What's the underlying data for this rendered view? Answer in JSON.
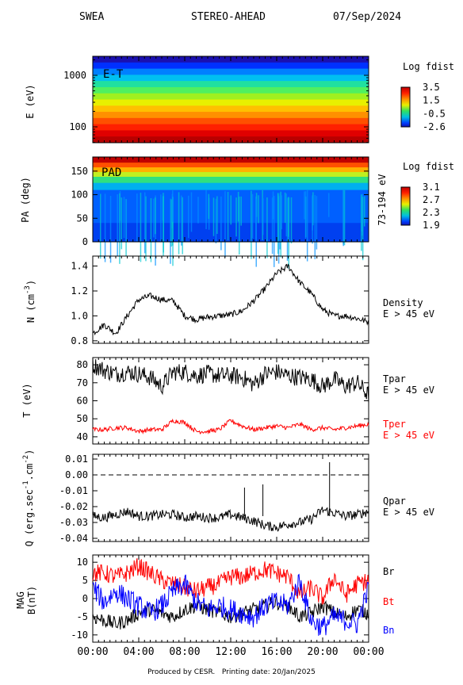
{
  "header": {
    "instrument": "SWEA",
    "spacecraft": "STEREO-AHEAD",
    "date": "07/Sep/2024"
  },
  "footer": {
    "produced_by": "Produced by CESR.",
    "printing_date": "Printing date: 20/Jan/2025"
  },
  "chart_data": [
    {
      "type": "heatmap",
      "panel": "E-T",
      "label": "E-T",
      "ylabel": "E (eV)",
      "yscale": "log",
      "yticks": [
        "100",
        "1000"
      ],
      "colorbar": {
        "title": "Log fdist",
        "ticks": [
          "3.5",
          "1.5",
          "-0.5",
          "-2.6"
        ],
        "min": -2.6,
        "max": 3.5
      }
    },
    {
      "type": "heatmap",
      "panel": "PAD",
      "label": "PAD",
      "ylabel": "PA (deg)",
      "right_label": "73-194 eV",
      "yticks": [
        "0",
        "50",
        "100",
        "150"
      ],
      "ylim": [
        0,
        180
      ],
      "colorbar": {
        "title": "Log fdist",
        "ticks": [
          "3.1",
          "2.7",
          "2.3",
          "1.9"
        ],
        "min": 1.9,
        "max": 3.1
      }
    },
    {
      "type": "line",
      "panel": "density",
      "ylabel": "N (cm",
      "ylabel_sup": "-3",
      "ylabel_end": ")",
      "ylim": [
        0.78,
        1.48
      ],
      "yticks": [
        "0.8",
        "1.0",
        "1.2",
        "1.4"
      ],
      "legend": [
        {
          "text": "Density",
          "color": "#000000"
        },
        {
          "text": "E > 45 eV",
          "color": "#000000"
        }
      ],
      "series": [
        {
          "name": "Density",
          "color": "#000000",
          "x": [
            0,
            1,
            2,
            3,
            4,
            5,
            6,
            7,
            8,
            9,
            10,
            11,
            12,
            13,
            14,
            15,
            16,
            17,
            18,
            19,
            20,
            21,
            22,
            23,
            24
          ],
          "y": [
            0.86,
            0.93,
            0.86,
            1.0,
            1.13,
            1.16,
            1.13,
            1.12,
            1.0,
            0.97,
            0.99,
            1.0,
            1.01,
            1.04,
            1.12,
            1.22,
            1.34,
            1.4,
            1.27,
            1.18,
            1.05,
            1.0,
            1.0,
            0.98,
            0.95
          ]
        }
      ]
    },
    {
      "type": "line",
      "panel": "temperature",
      "ylabel": "T (eV)",
      "ylim": [
        36,
        84
      ],
      "yticks": [
        "40",
        "50",
        "60",
        "70",
        "80"
      ],
      "legend": [
        {
          "text": "Tpar",
          "color": "#000000"
        },
        {
          "text": "E > 45 eV",
          "color": "#000000"
        },
        {
          "text": "Tper",
          "color": "#ff0000"
        },
        {
          "text": "E > 45 eV",
          "color": "#ff0000"
        }
      ],
      "series": [
        {
          "name": "Tpar",
          "color": "#000000",
          "x": [
            0,
            1,
            2,
            3,
            4,
            5,
            6,
            7,
            8,
            9,
            10,
            11,
            12,
            13,
            14,
            15,
            16,
            17,
            18,
            19,
            20,
            21,
            22,
            23,
            24
          ],
          "y": [
            80,
            77,
            75,
            76,
            75,
            73,
            68,
            76,
            76,
            74,
            75,
            74,
            74,
            73,
            69,
            75,
            76,
            74,
            73,
            72,
            68,
            72,
            68,
            70,
            63
          ]
        },
        {
          "name": "Tper",
          "color": "#ff0000",
          "x": [
            0,
            1,
            2,
            3,
            4,
            5,
            6,
            7,
            8,
            9,
            10,
            11,
            12,
            13,
            14,
            15,
            16,
            17,
            18,
            19,
            20,
            21,
            22,
            23,
            24
          ],
          "y": [
            44,
            44,
            45,
            45,
            43,
            44,
            44,
            49,
            48,
            43,
            43,
            44,
            49,
            46,
            44,
            45,
            46,
            45,
            47,
            44,
            45,
            44,
            45,
            46,
            47
          ]
        }
      ]
    },
    {
      "type": "line",
      "panel": "heatflux",
      "ylabel": "Q (erg.sec",
      "ylabel_sup1": "-1",
      "ylabel_mid": ".cm",
      "ylabel_sup2": "-2",
      "ylabel_end": ")",
      "ylim": [
        -0.042,
        0.013
      ],
      "yticks": [
        "0.01",
        "0.00",
        "-0.01",
        "-0.02",
        "-0.03",
        "-0.04"
      ],
      "legend": [
        {
          "text": "Qpar",
          "color": "#000000"
        },
        {
          "text": "E > 45 eV",
          "color": "#000000"
        }
      ],
      "series": [
        {
          "name": "Qpar",
          "color": "#000000",
          "x": [
            0,
            1,
            2,
            3,
            4,
            5,
            6,
            7,
            8,
            9,
            10,
            11,
            12,
            13,
            14,
            15,
            16,
            17,
            18,
            19,
            20,
            21,
            22,
            23,
            24
          ],
          "y": [
            -0.026,
            -0.027,
            -0.025,
            -0.023,
            -0.026,
            -0.026,
            -0.025,
            -0.025,
            -0.027,
            -0.026,
            -0.027,
            -0.027,
            -0.025,
            -0.027,
            -0.029,
            -0.032,
            -0.033,
            -0.031,
            -0.03,
            -0.028,
            -0.022,
            -0.024,
            -0.026,
            -0.025,
            -0.023
          ]
        }
      ]
    },
    {
      "type": "line",
      "panel": "mag",
      "ylabel": "MAG",
      "ylabel2": "B(nT)",
      "ylim": [
        -12,
        12
      ],
      "yticks": [
        "10",
        "5",
        "0",
        "-5",
        "-10"
      ],
      "legend": [
        {
          "text": "Br",
          "color": "#000000"
        },
        {
          "text": "Bt",
          "color": "#ff0000"
        },
        {
          "text": "Bn",
          "color": "#0000ff"
        }
      ],
      "xticks": [
        "00:00",
        "04:00",
        "08:00",
        "12:00",
        "16:00",
        "20:00",
        "00:00"
      ],
      "xlim": [
        0,
        24
      ],
      "series": [
        {
          "name": "Br",
          "color": "#000000",
          "x": [
            0,
            1,
            2,
            3,
            4,
            5,
            6,
            7,
            8,
            9,
            10,
            11,
            12,
            13,
            14,
            15,
            16,
            17,
            18,
            19,
            20,
            21,
            22,
            23,
            24
          ],
          "y": [
            -5,
            -6,
            -7,
            -6,
            -4,
            -3,
            -4,
            -5,
            -3,
            -2,
            -3,
            -4,
            -5,
            -4,
            -3,
            -2,
            -1,
            -2,
            -5,
            -4,
            -2,
            -4,
            -5,
            -3,
            -4
          ]
        },
        {
          "name": "Bt",
          "color": "#ff0000",
          "x": [
            0,
            1,
            2,
            3,
            4,
            5,
            6,
            7,
            8,
            9,
            10,
            11,
            12,
            13,
            14,
            15,
            16,
            17,
            18,
            19,
            20,
            21,
            22,
            23,
            24
          ],
          "y": [
            7,
            7,
            6,
            7,
            9,
            7,
            5,
            4,
            3,
            2,
            3,
            4,
            6,
            6,
            7,
            8,
            7,
            6,
            1,
            3,
            0,
            6,
            1,
            4,
            5
          ]
        },
        {
          "name": "Bn",
          "color": "#0000ff",
          "x": [
            0,
            1,
            2,
            3,
            4,
            5,
            6,
            7,
            8,
            9,
            10,
            11,
            12,
            13,
            14,
            15,
            16,
            17,
            18,
            19,
            20,
            21,
            22,
            23,
            24
          ],
          "y": [
            3,
            -1,
            2,
            0,
            -2,
            -4,
            -2,
            2,
            4,
            -1,
            -3,
            -2,
            -3,
            -4,
            -5,
            -2,
            -1,
            -2,
            5,
            -6,
            -8,
            -5,
            -6,
            -7,
            3
          ]
        }
      ]
    }
  ]
}
